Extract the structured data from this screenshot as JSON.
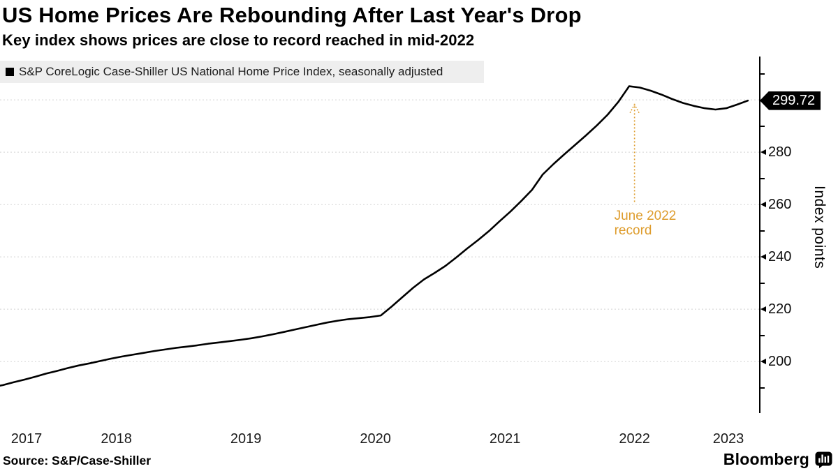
{
  "chart_data": {
    "type": "line",
    "title": "US Home Prices Are Rebounding After Last Year's Drop",
    "subtitle": "Key index shows prices are close to record reached in mid-2022",
    "legend_label": "S&P CoreLogic Case-Shiller US National Home Price Index, seasonally adjusted",
    "ylabel": "Index points",
    "line_color": "#000000",
    "grid_color": "#d4d4d4",
    "grid_on": true,
    "legend_position": "top-left",
    "x_tick_labels": [
      "2017",
      "2018",
      "2019",
      "2020",
      "2021",
      "2022",
      "2023"
    ],
    "y_tick_labels": [
      "200",
      "220",
      "240",
      "260",
      "280"
    ],
    "y_gridline_values": [
      200,
      220,
      240,
      260,
      280,
      300
    ],
    "y_minor_tick_values": [
      190,
      210,
      230,
      250,
      270,
      290,
      310
    ],
    "xlim": [
      2017.602,
      2023.467
    ],
    "ylim": [
      180.3,
      315.5
    ],
    "last_value_label": "299.72",
    "last_value": 299.72,
    "annotation": {
      "lines": [
        "June 2022",
        "record"
      ],
      "color": "#DE9C2C",
      "x": 2022.5,
      "arrow_from_value": 261,
      "arrow_tip_value": 298.5
    },
    "series": [
      {
        "name": "S&P CoreLogic Case-Shiller US National Home Price Index, seasonally adjusted",
        "start": "2017-07",
        "frequency": "monthly",
        "values": [
          190.2,
          191.0,
          192.1,
          193.1,
          194.2,
          195.4,
          196.4,
          197.5,
          198.5,
          199.3,
          200.2,
          201.1,
          201.9,
          202.6,
          203.3,
          204.0,
          204.6,
          205.2,
          205.7,
          206.2,
          206.8,
          207.3,
          207.8,
          208.3,
          208.9,
          209.6,
          210.4,
          211.3,
          212.2,
          213.1,
          214.0,
          214.9,
          215.6,
          216.2,
          216.6,
          217.0,
          217.6,
          221.0,
          224.6,
          228.2,
          231.4,
          233.9,
          236.6,
          239.8,
          243.2,
          246.4,
          249.8,
          253.6,
          257.3,
          261.3,
          265.6,
          271.5,
          275.5,
          279.2,
          282.8,
          286.4,
          290.2,
          294.3,
          299.2,
          305.2,
          304.7,
          303.5,
          302.0,
          300.3,
          298.8,
          297.7,
          296.8,
          296.3,
          296.8,
          298.2,
          299.72
        ]
      }
    ]
  },
  "footer": {
    "source": "Source: S&P/Case-Shiller",
    "brand": "Bloomberg"
  }
}
